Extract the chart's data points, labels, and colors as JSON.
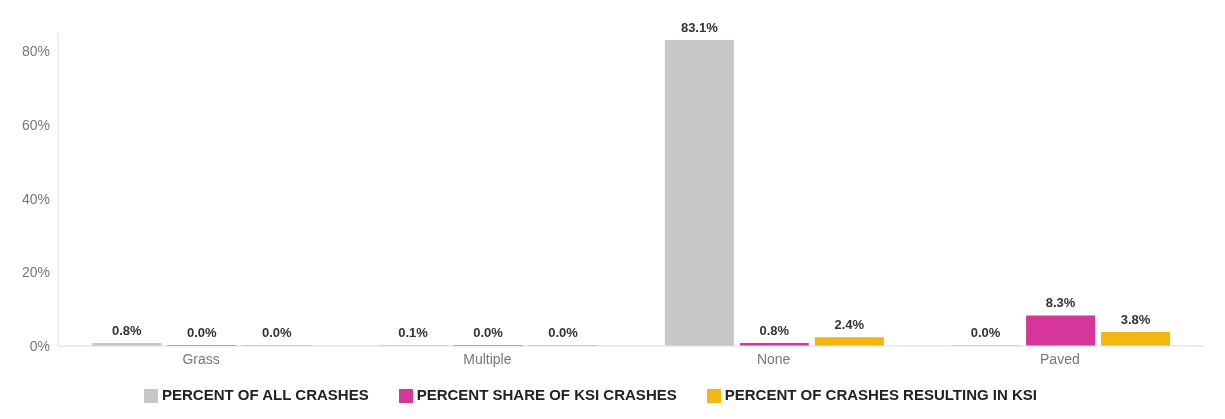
{
  "chart_data": {
    "type": "bar",
    "categories": [
      "Grass",
      "Multiple",
      "None",
      "Paved"
    ],
    "series": [
      {
        "name": "PERCENT OF ALL CRASHES",
        "color": "#c8c6c6",
        "values": [
          0.8,
          0.1,
          83.1,
          0.0
        ],
        "value_labels": [
          "0.8%",
          "0.1%",
          "83.1%",
          "0.0%"
        ]
      },
      {
        "name": "PERCENT SHARE OF KSI CRASHES",
        "color": "#d6369a",
        "values": [
          0.0,
          0.0,
          0.8,
          8.3
        ],
        "value_labels": [
          "0.0%",
          "0.0%",
          "0.8%",
          "8.3%"
        ]
      },
      {
        "name": "PERCENT OF CRASHES RESULTING IN KSI",
        "color": "#f2b713",
        "values": [
          0.0,
          0.0,
          2.4,
          3.8
        ],
        "value_labels": [
          "0.0%",
          "0.0%",
          "2.4%",
          "3.8%"
        ]
      }
    ],
    "ylim": [
      0,
      85
    ],
    "yticks": [
      {
        "value": 0,
        "label": "0%"
      },
      {
        "value": 20,
        "label": "20%"
      },
      {
        "value": 40,
        "label": "40%"
      },
      {
        "value": 60,
        "label": "60%"
      },
      {
        "value": 80,
        "label": "80%"
      }
    ],
    "grid": false,
    "legend": "bottom"
  }
}
